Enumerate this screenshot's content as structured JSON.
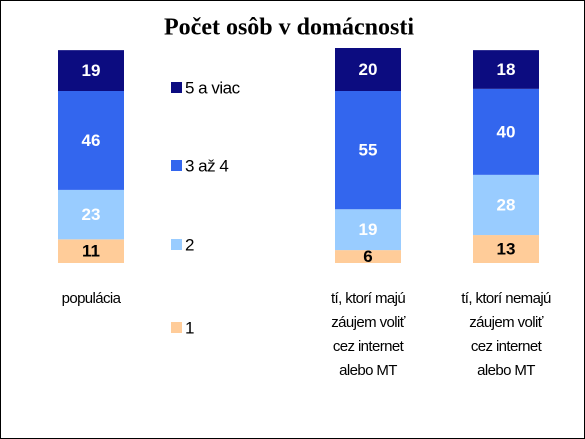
{
  "chart_data": {
    "type": "stacked_bar",
    "title": "Počet osôb v domácnosti",
    "categories": [
      "populácia",
      "tí, ktorí majú záujem voliť cez internet alebo MT",
      "tí, ktorí nemajú záujem voliť cez internet alebo MT"
    ],
    "series": [
      {
        "name": "1",
        "color": "#ffcc99",
        "values": [
          11,
          6,
          13
        ]
      },
      {
        "name": "2",
        "color": "#99ccff",
        "values": [
          23,
          19,
          28
        ]
      },
      {
        "name": "3 až 4",
        "color": "#3366ee",
        "values": [
          46,
          55,
          40
        ]
      },
      {
        "name": "5 a viac",
        "color": "#0c0c80",
        "values": [
          19,
          20,
          18
        ]
      }
    ]
  }
}
